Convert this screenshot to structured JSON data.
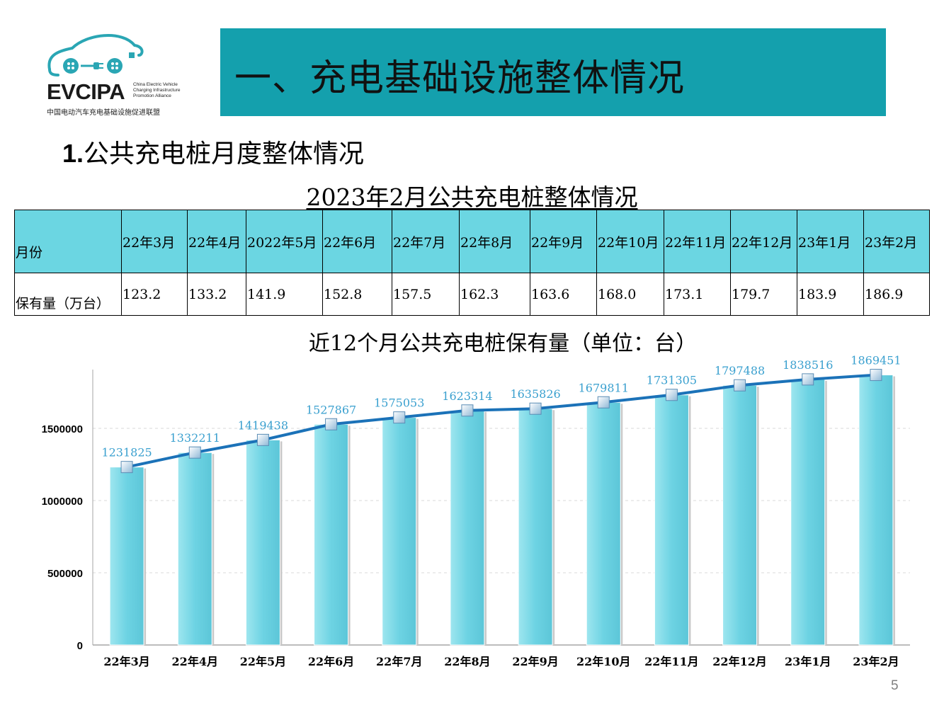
{
  "logo": {
    "wordmark": "EVCIPA",
    "english_lines": [
      "China Electric Vehicle",
      "Charging Infrastructure",
      "Promotion Alliance"
    ],
    "chinese": "中国电动汽车充电基础设施促进联盟"
  },
  "banner": {
    "title": "一、充电基础设施整体情况",
    "color": "#14a0ad"
  },
  "subtitle": {
    "number": "1.",
    "text": "公共充电桩月度整体情况"
  },
  "table": {
    "title": "2023年2月公共充电桩整体情况",
    "header_label": "月份",
    "row_label": "保有量（万台）",
    "months": [
      "22年3月",
      "22年4月",
      "2022年5月",
      "22年6月",
      "22年7月",
      "22年8月",
      "22年9月",
      "22年10月",
      "22年11月",
      "22年12月",
      "23年1月",
      "23年2月"
    ],
    "values": [
      "123.2",
      "133.2",
      "141.9",
      "152.8",
      "157.5",
      "162.3",
      "163.6",
      "168.0",
      "173.1",
      "179.7",
      "183.9",
      "186.9"
    ]
  },
  "chart_data": {
    "type": "bar",
    "title": "近12个月公共充电桩保有量（单位：台）",
    "categories": [
      "22年3月",
      "22年4月",
      "22年5月",
      "22年6月",
      "22年7月",
      "22年8月",
      "22年9月",
      "22年10月",
      "22年11月",
      "22年12月",
      "23年1月",
      "23年2月"
    ],
    "values": [
      1231825,
      1332211,
      1419438,
      1527867,
      1575053,
      1623314,
      1635826,
      1679811,
      1731305,
      1797488,
      1838516,
      1869451
    ],
    "data_labels": [
      "1231825",
      "1332211",
      "1419438",
      "1527867",
      "1575053",
      "1623314",
      "1635826",
      "1679811",
      "1731305",
      "1797488",
      "1838516",
      "1869451"
    ],
    "overlay_line": true,
    "ylim": [
      0,
      1900000
    ],
    "yticks": [
      0,
      500000,
      1000000,
      1500000
    ],
    "ytick_labels": [
      "0",
      "500000",
      "1000000",
      "1500000"
    ],
    "grid": true,
    "bar_color": "#6dd3e3",
    "line_color": "#1b72b8",
    "label_color": "#3aa0cf"
  },
  "page_number": "5"
}
